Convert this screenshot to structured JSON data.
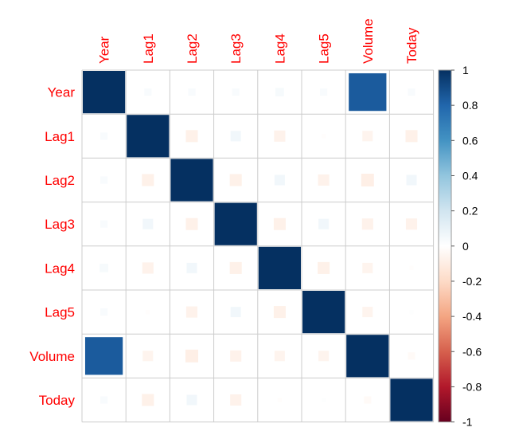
{
  "chart_data": {
    "type": "heatmap",
    "style": "corrplot-square",
    "variables": [
      "Year",
      "Lag1",
      "Lag2",
      "Lag3",
      "Lag4",
      "Lag5",
      "Volume",
      "Today"
    ],
    "matrix": [
      [
        1.0,
        0.03,
        0.03,
        0.03,
        0.04,
        0.03,
        0.84,
        0.03
      ],
      [
        0.03,
        1.0,
        -0.08,
        0.06,
        -0.07,
        -0.01,
        -0.06,
        -0.08
      ],
      [
        0.03,
        -0.08,
        1.0,
        -0.08,
        0.06,
        -0.07,
        -0.09,
        0.06
      ],
      [
        0.03,
        0.06,
        -0.08,
        1.0,
        -0.08,
        0.06,
        -0.07,
        -0.07
      ],
      [
        0.04,
        -0.07,
        0.06,
        -0.08,
        1.0,
        -0.08,
        -0.06,
        -0.01
      ],
      [
        0.03,
        -0.01,
        -0.07,
        0.06,
        -0.08,
        1.0,
        -0.06,
        0.01
      ],
      [
        0.84,
        -0.06,
        -0.09,
        -0.07,
        -0.06,
        -0.06,
        1.0,
        -0.03
      ],
      [
        0.03,
        -0.08,
        0.06,
        -0.07,
        -0.01,
        0.01,
        -0.03,
        1.0
      ]
    ],
    "colorbar": {
      "range": [
        -1,
        1
      ],
      "ticks": [
        "1",
        "0.8",
        "0.6",
        "0.4",
        "0.2",
        "0",
        "-0.2",
        "-0.4",
        "-0.6",
        "-0.8",
        "-1"
      ]
    },
    "colors": {
      "label": "#ff0000",
      "grid": "#cccccc",
      "scale": [
        "#67001f",
        "#b2182b",
        "#d6604d",
        "#f4a582",
        "#fddbc7",
        "#ffffff",
        "#d1e5f0",
        "#92c5de",
        "#4393c3",
        "#2166ac",
        "#053061"
      ]
    },
    "grid": true,
    "legend_position": "right"
  }
}
